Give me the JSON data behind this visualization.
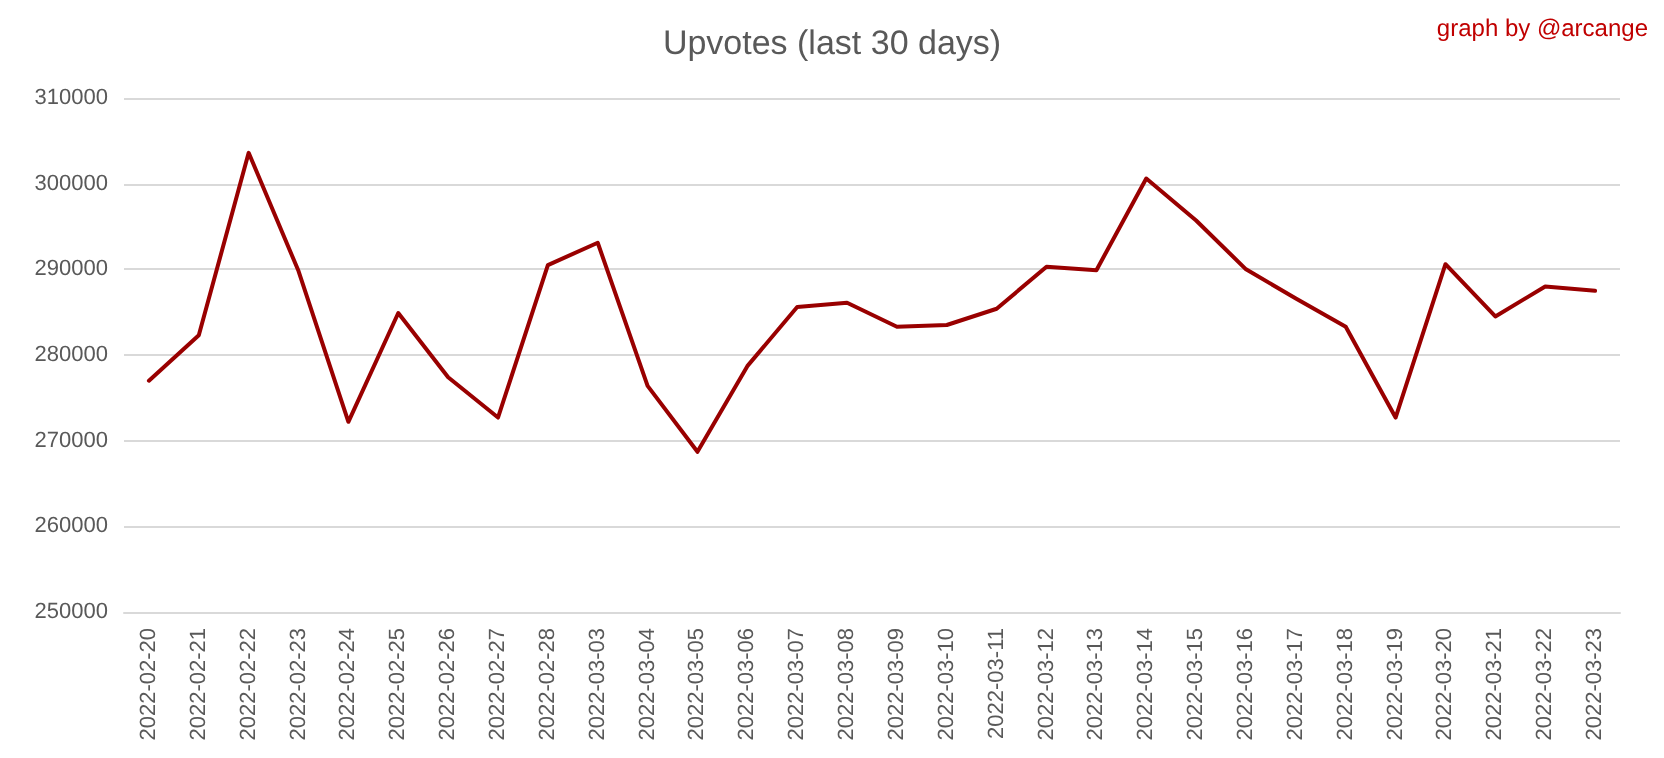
{
  "chart_data": {
    "type": "line",
    "title": "Upvotes (last 30 days)",
    "annotations": [
      "graph by @arcange"
    ],
    "categories": [
      "2022-02-20",
      "2022-02-21",
      "2022-02-22",
      "2022-02-23",
      "2022-02-24",
      "2022-02-25",
      "2022-02-26",
      "2022-02-27",
      "2022-02-28",
      "2022-03-03",
      "2022-03-04",
      "2022-03-05",
      "2022-03-06",
      "2022-03-07",
      "2022-03-08",
      "2022-03-09",
      "2022-03-10",
      "2022-03-11",
      "2022-03-12",
      "2022-03-13",
      "2022-03-14",
      "2022-03-15",
      "2022-03-16",
      "2022-03-17",
      "2022-03-18",
      "2022-03-19",
      "2022-03-20",
      "2022-03-21",
      "2022-03-22",
      "2022-03-23"
    ],
    "series": [
      {
        "color": "#990000",
        "values": [
          277000,
          282300,
          303600,
          289800,
          272200,
          284900,
          277400,
          272700,
          290500,
          293100,
          276400,
          268700,
          278700,
          285600,
          286100,
          283300,
          283500,
          285400,
          290300,
          289900,
          300600,
          295700,
          290000,
          286600,
          283300,
          272700,
          290600,
          284500,
          288000,
          287500
        ]
      }
    ],
    "ylim": [
      250000,
      310000
    ],
    "yticks": [
      250000,
      260000,
      270000,
      280000,
      290000,
      300000,
      310000
    ],
    "grid": "y",
    "marker": "none",
    "line_style": "solid"
  }
}
